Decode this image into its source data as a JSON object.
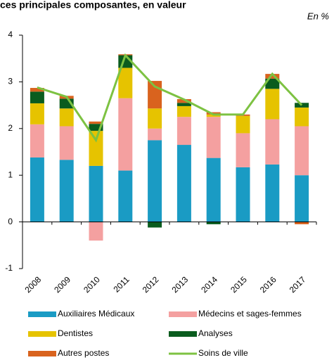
{
  "chart_data": {
    "type": "bar",
    "stacked": true,
    "title": "ces principales composantes, en valeur",
    "unit_label": "En %",
    "categories": [
      "2008",
      "2009",
      "2010",
      "2011",
      "2012",
      "2013",
      "2014",
      "2015",
      "2016",
      "2017"
    ],
    "ylim": [
      -1,
      4
    ],
    "yticks": [
      -1,
      0,
      1,
      2,
      3,
      4
    ],
    "series": [
      {
        "name": "Auxiliaires Médicaux",
        "color": "#1a9bc4",
        "values": [
          1.38,
          1.33,
          1.2,
          1.1,
          1.75,
          1.65,
          1.37,
          1.17,
          1.23,
          1.0
        ]
      },
      {
        "name": "Médecins et sages-femmes",
        "color": "#f4a0a0",
        "values": [
          0.71,
          0.72,
          -0.4,
          1.55,
          0.25,
          0.6,
          0.88,
          0.73,
          0.97,
          1.05
        ]
      },
      {
        "name": "Dentistes",
        "color": "#e6c300",
        "values": [
          0.45,
          0.38,
          0.75,
          0.65,
          0.43,
          0.23,
          0.05,
          0.37,
          0.65,
          0.4
        ]
      },
      {
        "name": "Analyses",
        "color": "#0a5c1e",
        "values": [
          0.25,
          0.21,
          0.15,
          0.27,
          -0.12,
          0.07,
          -0.05,
          0.0,
          0.22,
          0.1
        ]
      },
      {
        "name": "Autres postes",
        "color": "#d9631e",
        "values": [
          0.08,
          0.06,
          0.05,
          0.02,
          0.59,
          0.08,
          0.05,
          0.03,
          0.1,
          -0.05
        ]
      },
      {
        "name": "Soins de ville",
        "color": "#7dc242",
        "type": "line",
        "values": [
          2.88,
          2.68,
          1.75,
          3.57,
          2.9,
          2.62,
          2.3,
          2.3,
          3.17,
          2.5
        ]
      }
    ]
  }
}
